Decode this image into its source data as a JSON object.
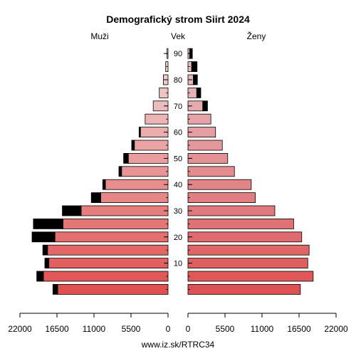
{
  "chart_data": {
    "type": "bar",
    "orientation": "horizontal-pyramid",
    "title": "Demografický strom Siirt 2024",
    "left_label": "Muži",
    "center_label": "Vek",
    "right_label": "Ženy",
    "source": "www.iz.sk/RTRC34",
    "age_groups": [
      "0-4",
      "5-9",
      "10-14",
      "15-19",
      "20-24",
      "25-29",
      "30-34",
      "35-39",
      "40-44",
      "45-49",
      "50-54",
      "55-59",
      "60-64",
      "65-69",
      "70-74",
      "75-79",
      "80-84",
      "85-89",
      "90+"
    ],
    "age_ticks": [
      10,
      20,
      30,
      40,
      50,
      60,
      70,
      80,
      90
    ],
    "xlim": [
      0,
      22000
    ],
    "x_ticks_left": [
      "22000",
      "16500",
      "11000",
      "5500",
      "0"
    ],
    "x_ticks_right": [
      "0",
      "5500",
      "11000",
      "16500",
      "22000"
    ],
    "series": [
      {
        "name": "Muži",
        "values": [
          16400,
          18500,
          17700,
          17900,
          16800,
          15600,
          12900,
          10000,
          9300,
          6900,
          5900,
          5000,
          4100,
          3400,
          2200,
          1300,
          700,
          350,
          150
        ],
        "excess": [
          700,
          1000,
          600,
          700,
          3400,
          4400,
          2800,
          1400,
          400,
          400,
          700,
          400,
          200,
          0,
          0,
          0,
          0,
          0,
          0
        ]
      },
      {
        "name": "Ženy",
        "values": [
          16700,
          18600,
          17800,
          18000,
          16900,
          15700,
          12900,
          10000,
          9400,
          6900,
          5900,
          5100,
          4100,
          3400,
          2200,
          1300,
          800,
          550,
          250
        ],
        "excess": [
          0,
          0,
          0,
          0,
          0,
          0,
          0,
          0,
          0,
          0,
          0,
          0,
          0,
          0,
          700,
          600,
          600,
          800,
          400
        ]
      }
    ]
  }
}
